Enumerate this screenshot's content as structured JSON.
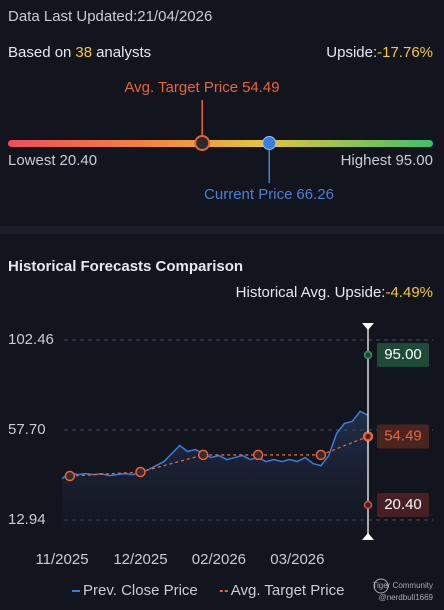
{
  "header": {
    "last_updated": "Data Last Updated:21/04/2026"
  },
  "summary": {
    "prefix": "Based on",
    "analyst_count": 38,
    "suffix": "analysts",
    "upside_label": "Upside:",
    "upside": "-17.76%"
  },
  "gauge": {
    "low": {
      "label": "Lowest",
      "value": 20.4,
      "value_label": "20.40"
    },
    "high": {
      "label": "Highest",
      "value": 95,
      "value_label": "95.00"
    },
    "target": {
      "label": "Avg. Target Price",
      "value": 54.49
    },
    "current": {
      "label": "Current Price",
      "value": 66.26
    }
  },
  "chart_data": {
    "type": "line",
    "title": "Historical Forecasts Comparison",
    "subtitle_label": "Historical Avg. Upside:",
    "subtitle_value": "-4.49%",
    "categories": [
      "11/2025",
      null,
      null,
      null,
      null,
      null,
      null,
      null,
      null,
      null,
      "12/2025",
      null,
      null,
      null,
      null,
      null,
      null,
      null,
      null,
      null,
      "02/2026",
      null,
      null,
      null,
      null,
      null,
      null,
      null,
      null,
      null,
      "03/2026",
      null,
      null,
      null,
      null,
      null,
      null,
      null,
      null,
      null
    ],
    "series": [
      {
        "name": "Prev. Close Price",
        "color": "#3b7ddd",
        "values": [
          33.5,
          36.5,
          35.5,
          36,
          35.5,
          36,
          35,
          35.5,
          36,
          35.5,
          36.5,
          38,
          40,
          42,
          46,
          50,
          47,
          48,
          46,
          44,
          45,
          43,
          44,
          45,
          43,
          44,
          42,
          43,
          42,
          43,
          42,
          44,
          41,
          40,
          45,
          56,
          61,
          62,
          67,
          65
        ]
      },
      {
        "name": "Avg. Target Price",
        "color": "#e8643c",
        "values": [
          null,
          34.8,
          null,
          null,
          null,
          null,
          null,
          null,
          null,
          null,
          36.8,
          null,
          null,
          null,
          null,
          null,
          null,
          null,
          45.3,
          null,
          null,
          null,
          null,
          null,
          null,
          45.3,
          null,
          null,
          null,
          null,
          null,
          null,
          null,
          45.3,
          null,
          null,
          null,
          null,
          null,
          54.49
        ]
      }
    ],
    "ylim": [
      12.94,
      102.46
    ],
    "yticks": [
      12.94,
      {
        "value": 57.7,
        "label": "57.70"
      },
      102.46
    ],
    "grid": true
  },
  "watermark": {
    "brand": "Tiger Community",
    "handle": "@nerdbull1669"
  }
}
